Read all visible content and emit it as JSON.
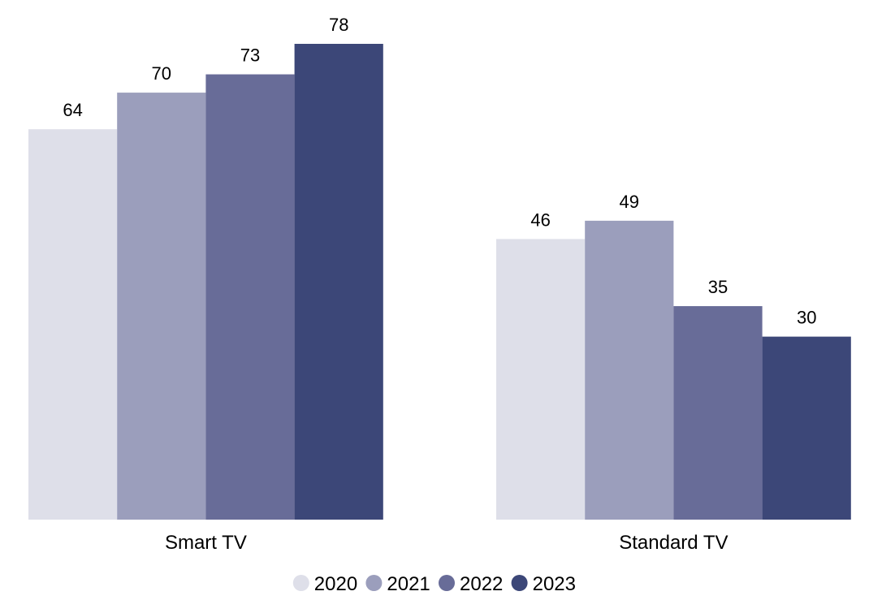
{
  "chart_data": {
    "type": "bar",
    "categories": [
      "Smart TV",
      "Standard TV"
    ],
    "series": [
      {
        "name": "2020",
        "values": [
          64,
          46
        ],
        "color": "#dedfe9"
      },
      {
        "name": "2021",
        "values": [
          70,
          49
        ],
        "color": "#9b9ebc"
      },
      {
        "name": "2022",
        "values": [
          73,
          35
        ],
        "color": "#686c98"
      },
      {
        "name": "2023",
        "values": [
          78,
          30
        ],
        "color": "#3c4778"
      }
    ],
    "ylim": [
      0,
      78
    ],
    "grid": false,
    "legend": "bottom-center",
    "data_labels": true
  }
}
